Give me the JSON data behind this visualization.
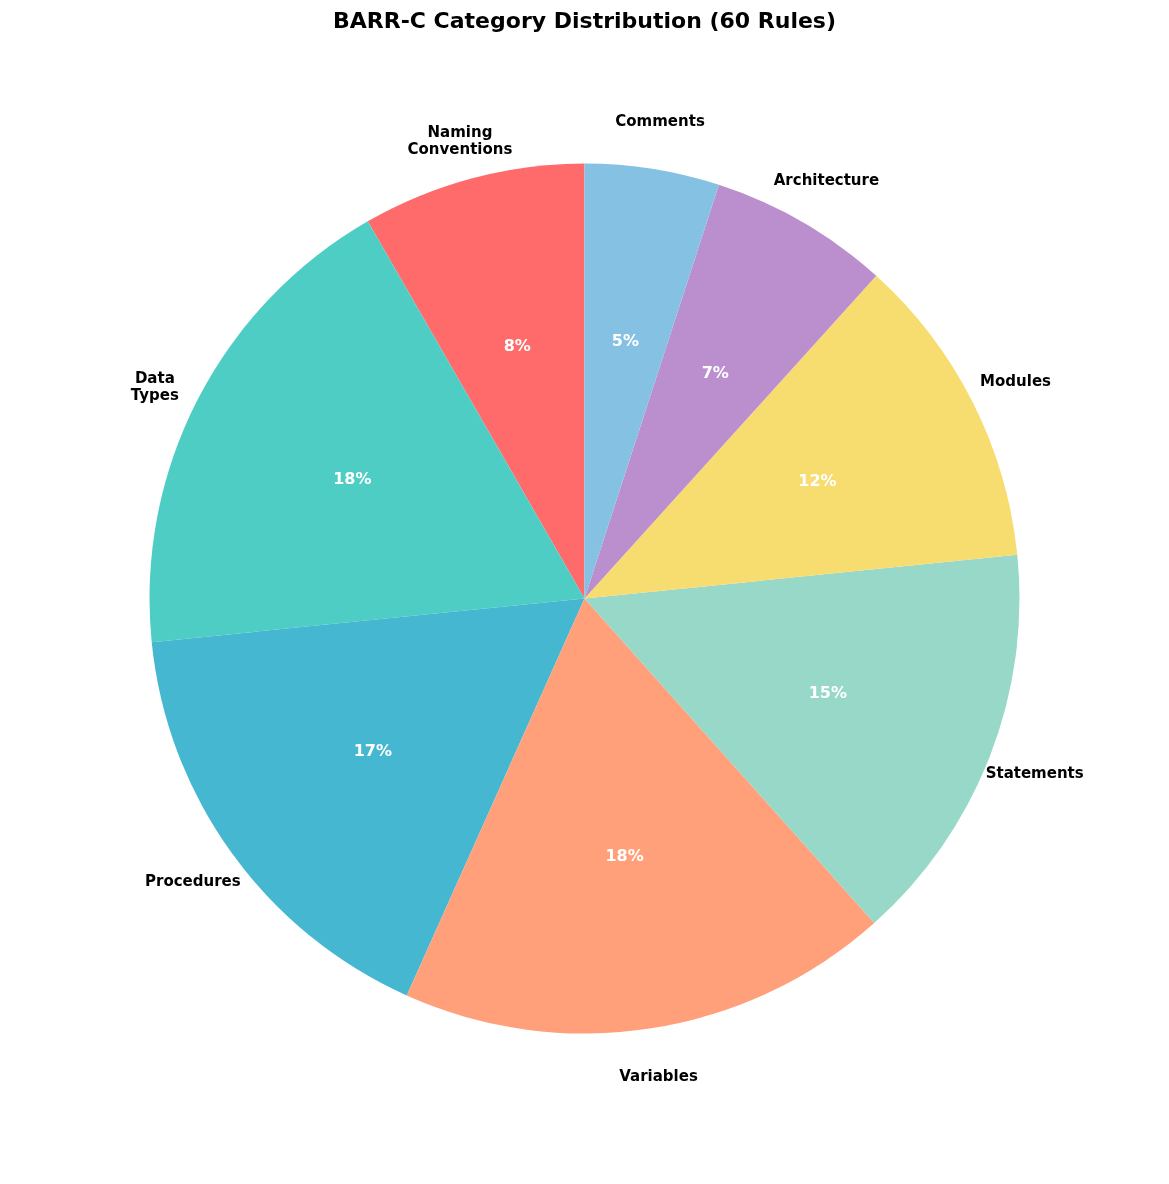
{
  "chart_data": {
    "type": "pie",
    "title": "BARR-C Category Distribution (60 Rules)",
    "categories": [
      "Naming Conventions",
      "Data Types",
      "Procedures",
      "Variables",
      "Statements",
      "Modules",
      "Architecture",
      "Comments"
    ],
    "values": [
      8.3,
      18.3,
      16.7,
      18.3,
      15,
      11.7,
      6.7,
      5
    ],
    "value_labels": [
      "8%",
      "18%",
      "17%",
      "18%",
      "15%",
      "12%",
      "7%",
      "5%"
    ],
    "colors": [
      "#ff6b6b",
      "#4ecdc4",
      "#45b7d1",
      "#ffa07a",
      "#98d8c8",
      "#f7dc6f",
      "#bb8fce",
      "#85c1e2"
    ],
    "legend": false
  }
}
